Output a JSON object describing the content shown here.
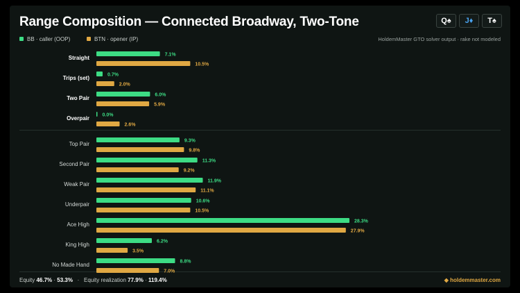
{
  "title": "Range Composition — Connected Broadway, Two-Tone",
  "board": [
    {
      "rank": "Q",
      "suit": "♠",
      "color": "#ffffff"
    },
    {
      "rank": "J",
      "suit": "♦",
      "color": "#4aa3f0"
    },
    {
      "rank": "T",
      "suit": "♠",
      "color": "#ffffff"
    }
  ],
  "source_note": "HoldemMaster GTO solver output · rake not modeled",
  "footer": {
    "equity_label": "Equity",
    "equity_oop": "46.7%",
    "equity_ip": "53.3%",
    "sep": "·",
    "realization_label": "Equity realization",
    "realization_oop": "77.9%",
    "realization_ip": "119.4%",
    "brand": "◆ holdemmaster.com"
  },
  "chart_data": {
    "type": "bar",
    "orientation": "horizontal",
    "unit": "%",
    "categories": [
      "Straight",
      "Trips (set)",
      "Two Pair",
      "Overpair",
      "Top Pair",
      "Second Pair",
      "Weak Pair",
      "Underpair",
      "Ace High",
      "King High",
      "No Made Hand"
    ],
    "emphasized_categories": [
      "Straight",
      "Trips (set)",
      "Two Pair",
      "Overpair"
    ],
    "series": [
      {
        "name": "BB · caller (OOP)",
        "color": "#3ddc84",
        "values": [
          7.1,
          0.7,
          6.0,
          0.0,
          9.3,
          11.3,
          11.9,
          10.6,
          28.3,
          6.2,
          8.8
        ]
      },
      {
        "name": "BTN · opener (IP)",
        "color": "#e0a843",
        "values": [
          10.5,
          2.0,
          5.9,
          2.6,
          9.8,
          9.2,
          11.1,
          10.5,
          27.9,
          3.5,
          7.0
        ]
      }
    ],
    "legend_position": "top-left",
    "grid": false
  }
}
